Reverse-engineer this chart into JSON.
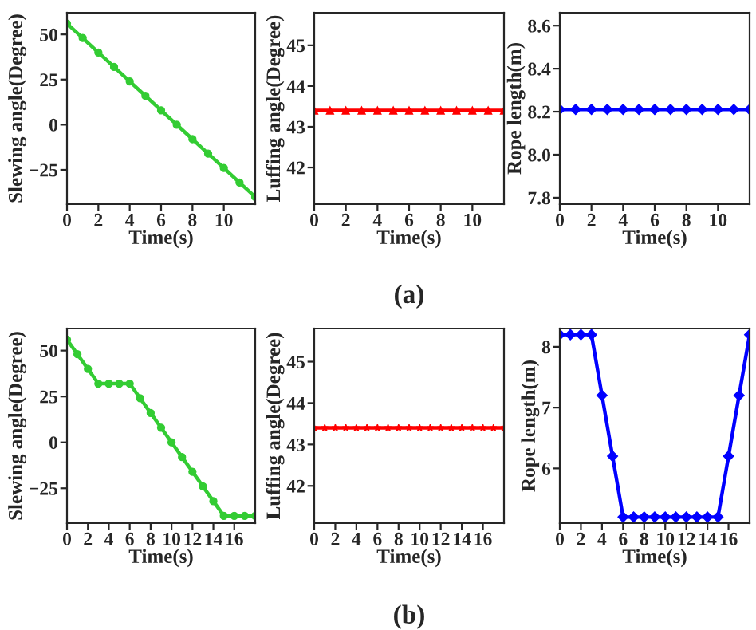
{
  "chart_data": [
    {
      "type": "line",
      "xlabel": "Time(s)",
      "ylabel": "Slewing angle(Degree)",
      "x": [
        0,
        1,
        2,
        3,
        4,
        5,
        6,
        7,
        8,
        9,
        10,
        11,
        12
      ],
      "series": [
        {
          "color": "#33cc33",
          "values": [
            56,
            48,
            40,
            32,
            24,
            16,
            8,
            0,
            -8,
            -16,
            -24,
            -32,
            -40
          ]
        }
      ],
      "marker": "circle",
      "xlim": [
        0,
        12
      ],
      "xticks": [
        0,
        2,
        4,
        6,
        8,
        10
      ],
      "ylim": [
        -44,
        62
      ],
      "yticks": [
        -25,
        0,
        25,
        50
      ],
      "grid": false,
      "legend": false
    },
    {
      "type": "line",
      "xlabel": "Time(s)",
      "ylabel": "Luffing angle(Degree)",
      "x": [
        0,
        1,
        2,
        3,
        4,
        5,
        6,
        7,
        8,
        9,
        10,
        11,
        12
      ],
      "series": [
        {
          "color": "#ff0000",
          "values": [
            43.4,
            43.4,
            43.4,
            43.4,
            43.4,
            43.4,
            43.4,
            43.4,
            43.4,
            43.4,
            43.4,
            43.4,
            43.4
          ]
        }
      ],
      "marker": "triangle",
      "xlim": [
        0,
        12
      ],
      "xticks": [
        0,
        2,
        4,
        6,
        8,
        10
      ],
      "ylim": [
        41.1,
        45.8
      ],
      "yticks": [
        42,
        43,
        44,
        45
      ],
      "grid": false,
      "legend": false,
      "annotations": [
        "(a)"
      ]
    },
    {
      "type": "line",
      "xlabel": "Time(s)",
      "ylabel": "Rope length(m)",
      "x": [
        0,
        1,
        2,
        3,
        4,
        5,
        6,
        7,
        8,
        9,
        10,
        11,
        12
      ],
      "series": [
        {
          "color": "#0000ff",
          "values": [
            8.21,
            8.21,
            8.21,
            8.21,
            8.21,
            8.21,
            8.21,
            8.21,
            8.21,
            8.21,
            8.21,
            8.21,
            8.21
          ]
        }
      ],
      "marker": "diamond",
      "xlim": [
        0,
        12
      ],
      "xticks": [
        0,
        2,
        4,
        6,
        8,
        10
      ],
      "ylim": [
        7.77,
        8.66
      ],
      "yticks": [
        7.8,
        {
          "value": 8,
          "label": "8.0"
        },
        8.2,
        8.4,
        8.6
      ],
      "grid": false,
      "legend": false
    },
    {
      "type": "line",
      "xlabel": "Time(s)",
      "ylabel": "Slewing angle(Degree)",
      "x": [
        0,
        1,
        2,
        3,
        4,
        5,
        6,
        7,
        8,
        9,
        10,
        11,
        12,
        13,
        14,
        15,
        16,
        17,
        18
      ],
      "series": [
        {
          "color": "#33cc33",
          "values": [
            56,
            48,
            40,
            32,
            32,
            32,
            32,
            24,
            16,
            8,
            0,
            -8,
            -16,
            -24,
            -32,
            -40,
            -40,
            -40,
            -40
          ]
        }
      ],
      "marker": "circle",
      "xlim": [
        0,
        18
      ],
      "xticks": [
        0,
        2,
        4,
        6,
        8,
        10,
        12,
        14,
        16
      ],
      "ylim": [
        -44,
        62
      ],
      "yticks": [
        -25,
        0,
        25,
        50
      ],
      "grid": false,
      "legend": false
    },
    {
      "type": "line",
      "xlabel": "Time(s)",
      "ylabel": "Luffing angle(Degree)",
      "x": [
        0,
        1,
        2,
        3,
        4,
        5,
        6,
        7,
        8,
        9,
        10,
        11,
        12,
        13,
        14,
        15,
        16,
        17,
        18
      ],
      "series": [
        {
          "color": "#ff0000",
          "values": [
            43.4,
            43.4,
            43.4,
            43.4,
            43.4,
            43.4,
            43.4,
            43.4,
            43.4,
            43.4,
            43.4,
            43.4,
            43.4,
            43.4,
            43.4,
            43.4,
            43.4,
            43.4,
            43.4
          ]
        }
      ],
      "marker": "star",
      "xlim": [
        0,
        18
      ],
      "xticks": [
        0,
        2,
        4,
        6,
        8,
        10,
        12,
        14,
        16
      ],
      "ylim": [
        41.1,
        45.8
      ],
      "yticks": [
        42,
        43,
        44,
        45
      ],
      "grid": false,
      "legend": false,
      "annotations": [
        "(b)"
      ]
    },
    {
      "type": "line",
      "xlabel": "Time(s)",
      "ylabel": "Rope length(m)",
      "x": [
        0,
        1,
        2,
        3,
        4,
        5,
        6,
        7,
        8,
        9,
        10,
        11,
        12,
        13,
        14,
        15,
        16,
        17,
        18
      ],
      "series": [
        {
          "color": "#0000ff",
          "values": [
            8.2,
            8.2,
            8.2,
            8.2,
            7.2,
            6.2,
            5.2,
            5.2,
            5.2,
            5.2,
            5.2,
            5.2,
            5.2,
            5.2,
            5.2,
            5.2,
            6.2,
            7.2,
            8.2
          ]
        }
      ],
      "marker": "diamond",
      "xlim": [
        0,
        18
      ],
      "xticks": [
        0,
        2,
        4,
        6,
        8,
        10,
        12,
        14,
        16
      ],
      "ylim": [
        5.1,
        8.3
      ],
      "yticks": [
        6,
        7,
        8
      ],
      "grid": false,
      "legend": false
    }
  ]
}
